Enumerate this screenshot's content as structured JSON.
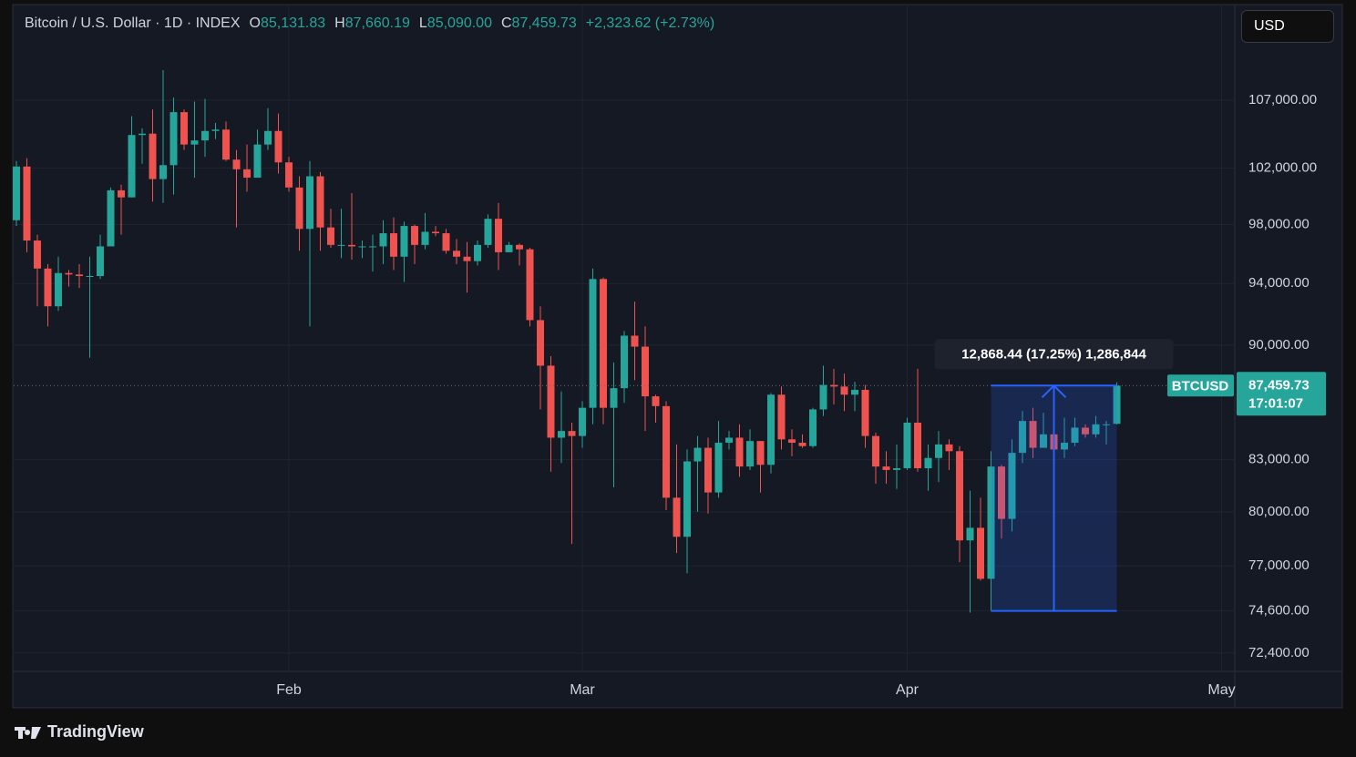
{
  "header": {
    "symbol": "Bitcoin / U.S. Dollar · 1D · INDEX",
    "fields": [
      {
        "key": "O",
        "value": "85,131.83"
      },
      {
        "key": "H",
        "value": "87,660.19"
      },
      {
        "key": "L",
        "value": "85,090.00"
      },
      {
        "key": "C",
        "value": "87,459.73"
      }
    ],
    "change": "+2,323.62 (+2.73%)"
  },
  "currency": "USD",
  "brand": "TradingView",
  "chart_data": {
    "type": "candlestick",
    "log_scale": true,
    "grid": true,
    "up_color": "#26a69a",
    "down_color": "#ef5350",
    "x": [
      0,
      1,
      2,
      3,
      4,
      5,
      6,
      7,
      8,
      9,
      10,
      11,
      12,
      13,
      14,
      15,
      16,
      17,
      18,
      19,
      20,
      21,
      22,
      23,
      24,
      25,
      26,
      27,
      28,
      29,
      30,
      31,
      32,
      33,
      34,
      35,
      36,
      37,
      38,
      39,
      40,
      41,
      42,
      43,
      44,
      45,
      46,
      47,
      48,
      49,
      50,
      51,
      52,
      53,
      54,
      55,
      56,
      57,
      58,
      59,
      60,
      61,
      62,
      63,
      64,
      65,
      66,
      67,
      68,
      69,
      70,
      71,
      72,
      73,
      74,
      75,
      76,
      77,
      78,
      79,
      80,
      81,
      82,
      83,
      84,
      85,
      86,
      87,
      88,
      89,
      90,
      91,
      92,
      93,
      94,
      95,
      96,
      97,
      98,
      99,
      100,
      101,
      102,
      103,
      104,
      105
    ],
    "xlim": [
      -0.26,
      116.26
    ],
    "xticks": [
      {
        "value": 26,
        "label": "Feb"
      },
      {
        "value": 54,
        "label": "Mar"
      },
      {
        "value": 85,
        "label": "Apr"
      },
      {
        "value": 115,
        "label": "May"
      }
    ],
    "ylim": [
      71470,
      114480
    ],
    "yticks": [
      {
        "value": 72400,
        "label": "72,400.00"
      },
      {
        "value": 74600,
        "label": "74,600.00"
      },
      {
        "value": 77000,
        "label": "77,000.00"
      },
      {
        "value": 80000,
        "label": "80,000.00"
      },
      {
        "value": 83000,
        "label": "83,000.00"
      },
      {
        "value": 90000,
        "label": "90,000.00"
      },
      {
        "value": 94000,
        "label": "94,000.00"
      },
      {
        "value": 98000,
        "label": "98,000.00"
      },
      {
        "value": 102000,
        "label": "102,000.00"
      },
      {
        "value": 107000,
        "label": "107,000.00"
      }
    ],
    "open": [
      98300,
      102100,
      96900,
      95000,
      92500,
      94700,
      94600,
      94500,
      94500,
      96500,
      100400,
      99900,
      104400,
      104500,
      101200,
      102200,
      106100,
      103700,
      104000,
      104700,
      104800,
      102600,
      101900,
      101300,
      103700,
      104700,
      102400,
      100600,
      97700,
      101400,
      97800,
      96600,
      96600,
      96500,
      96500,
      96500,
      97400,
      95800,
      97900,
      96600,
      97500,
      97400,
      96200,
      95800,
      95500,
      96600,
      98400,
      96100,
      96600,
      96300,
      91600,
      88700,
      84300,
      84700,
      84400,
      86100,
      94300,
      86100,
      87300,
      90600,
      89900,
      86800,
      86200,
      80800,
      78600,
      82900,
      83700,
      81100,
      84000,
      84300,
      82600,
      84100,
      82700,
      86900,
      84200,
      84000,
      83800,
      86000,
      87500,
      87400,
      86900,
      87200,
      84400,
      82600,
      82400,
      82500,
      85200,
      82500,
      83100,
      83900,
      83500,
      78400,
      79100,
      76300,
      82600,
      79600,
      83400,
      85300,
      83700,
      84500,
      83600,
      84000,
      84900,
      84500,
      85100,
      85131.83
    ],
    "high": [
      102500,
      102700,
      97300,
      95300,
      95800,
      94900,
      95300,
      95800,
      97300,
      100600,
      100800,
      105800,
      104900,
      106300,
      109300,
      107200,
      106300,
      106900,
      107100,
      105300,
      105400,
      103300,
      103700,
      104800,
      106400,
      106000,
      102800,
      101400,
      102500,
      101700,
      99100,
      99100,
      100200,
      96900,
      97300,
      98300,
      98500,
      98200,
      98000,
      98800,
      97900,
      97700,
      97000,
      96800,
      96900,
      98700,
      99500,
      96800,
      96700,
      96400,
      92500,
      89300,
      87100,
      85200,
      86500,
      95000,
      94400,
      88900,
      90900,
      92800,
      91200,
      86900,
      86500,
      83900,
      83600,
      84400,
      84300,
      85300,
      84700,
      85100,
      84800,
      84100,
      87000,
      87400,
      84800,
      84500,
      86100,
      88700,
      88500,
      88200,
      87700,
      87500,
      84600,
      83500,
      83900,
      85500,
      88500,
      83900,
      84700,
      84200,
      83800,
      81200,
      80800,
      83500,
      82700,
      84200,
      85900,
      86100,
      85800,
      86500,
      85500,
      85500,
      85100,
      85600,
      85300,
      87660.19
    ],
    "low": [
      97900,
      96100,
      92500,
      91200,
      92200,
      93800,
      93700,
      89200,
      94300,
      96500,
      97300,
      99900,
      102300,
      99600,
      99500,
      100100,
      103300,
      101300,
      102800,
      104100,
      102500,
      97800,
      100300,
      101300,
      103300,
      101600,
      100300,
      96200,
      91200,
      96200,
      96400,
      95700,
      95600,
      95700,
      94800,
      95300,
      94900,
      94100,
      95300,
      96300,
      97200,
      96000,
      95300,
      93400,
      95200,
      96400,
      94900,
      96100,
      95200,
      91200,
      86000,
      82300,
      82800,
      78200,
      83700,
      85100,
      85100,
      81400,
      86400,
      87800,
      84700,
      85200,
      80100,
      77700,
      76600,
      80000,
      79900,
      80800,
      83600,
      82000,
      82400,
      81100,
      82200,
      83600,
      83200,
      83700,
      83700,
      85600,
      86300,
      85900,
      85900,
      83700,
      81600,
      81600,
      81300,
      82400,
      82300,
      81200,
      81700,
      82400,
      77200,
      74500,
      76200,
      74600,
      78500,
      78900,
      82800,
      83100,
      83700,
      83600,
      83100,
      83800,
      84300,
      84300,
      83900,
      85090.0
    ],
    "close": [
      102100,
      96900,
      95000,
      92500,
      94700,
      94600,
      94500,
      94500,
      96500,
      100400,
      99900,
      104400,
      104500,
      101200,
      102200,
      106100,
      103700,
      104000,
      104700,
      104800,
      102600,
      101900,
      101300,
      103700,
      104700,
      102400,
      100600,
      97700,
      101400,
      97800,
      96600,
      96600,
      96500,
      96500,
      96500,
      97400,
      95800,
      97900,
      96600,
      97500,
      97400,
      96200,
      95800,
      95500,
      96600,
      98400,
      96100,
      96600,
      96300,
      91600,
      88700,
      84300,
      84700,
      84400,
      86100,
      94300,
      86100,
      87300,
      90600,
      89900,
      86800,
      86200,
      80800,
      78600,
      82900,
      83700,
      81100,
      84000,
      84300,
      82600,
      84100,
      82700,
      86900,
      84200,
      84000,
      83800,
      86000,
      87500,
      87400,
      86900,
      87200,
      84400,
      82600,
      82400,
      82500,
      85200,
      82500,
      83100,
      83900,
      83500,
      78400,
      79100,
      76300,
      82600,
      79600,
      83400,
      85300,
      83700,
      84500,
      83600,
      84000,
      84900,
      84500,
      85100,
      85100,
      87459.73
    ],
    "last_label": {
      "name": "BTCUSD",
      "price": "87,459.73",
      "countdown": "17:01:07"
    },
    "measure": {
      "text": "12,868.44 (17.25%) 1,286,844",
      "low": 74591.29,
      "high": 87459.73,
      "x_from": 93,
      "x_to": 105
    }
  }
}
